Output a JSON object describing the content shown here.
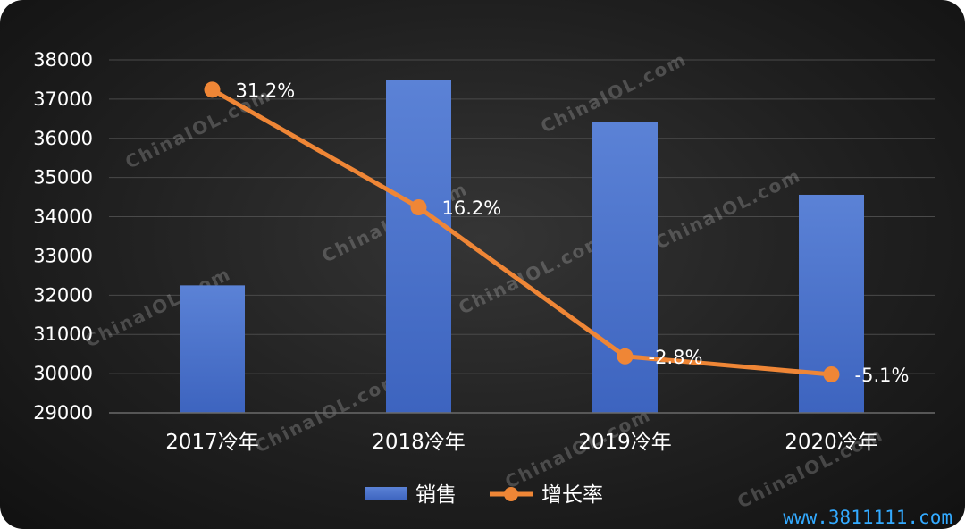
{
  "chart_data": {
    "type": "bar",
    "categories": [
      "2017冷年",
      "2018冷年",
      "2019冷年",
      "2020冷年"
    ],
    "series": [
      {
        "name": "销售",
        "type": "bar",
        "values": [
          32250,
          37480,
          36420,
          34560
        ],
        "color": "#4a72c8"
      },
      {
        "name": "增长率",
        "type": "line",
        "values": [
          31.2,
          16.2,
          -2.8,
          -5.1
        ],
        "labels": [
          "31.2%",
          "16.2%",
          "-2.8%",
          "-5.1%"
        ],
        "color": "#ef8636"
      }
    ],
    "ylim": [
      29000,
      38000
    ],
    "yticks": [
      "29000",
      "30000",
      "31000",
      "32000",
      "33000",
      "34000",
      "35000",
      "36000",
      "37000",
      "38000"
    ],
    "grid": true,
    "legend_position": "bottom"
  },
  "watermark": "ChinaIOL.com",
  "site_url": "www.3811111.com"
}
